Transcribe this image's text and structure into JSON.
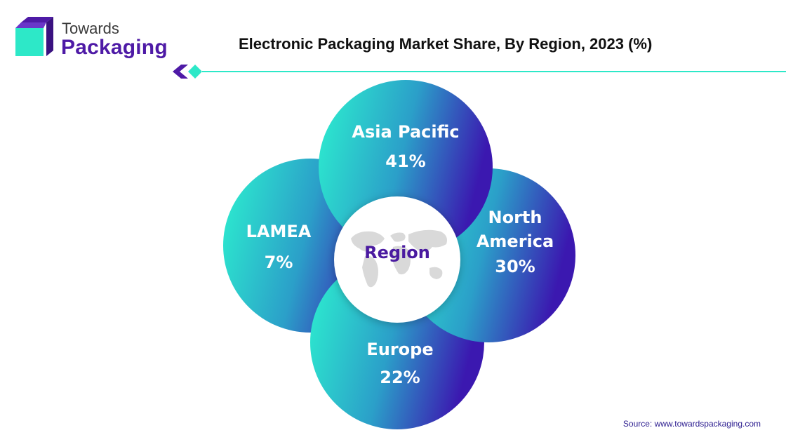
{
  "brand": {
    "line1": "Towards",
    "line2": "Packaging",
    "colors": {
      "purple": "#4e1aa6",
      "teal": "#2de8c8",
      "dark": "#3a3a3a"
    }
  },
  "source": "Source: www.towardspackaging.com",
  "chart_data": {
    "type": "pie",
    "title": "Electronic Packaging Market Share, By Region, 2023 (%)",
    "center_label": "Region",
    "categories": [
      "Asia Pacific",
      "North America",
      "Europe",
      "LAMEA"
    ],
    "values": [
      41,
      30,
      22,
      7
    ],
    "value_labels": [
      "41%",
      "30%",
      "22%",
      "7%"
    ],
    "label_lines": [
      [
        "Asia Pacific"
      ],
      [
        "North",
        "America"
      ],
      [
        "Europe"
      ],
      [
        "LAMEA"
      ]
    ],
    "colors": {
      "gradient_start": "#2df2cf",
      "gradient_end": "#3b18b0",
      "center": "#ffffff",
      "map": "#d9d9d9"
    }
  }
}
